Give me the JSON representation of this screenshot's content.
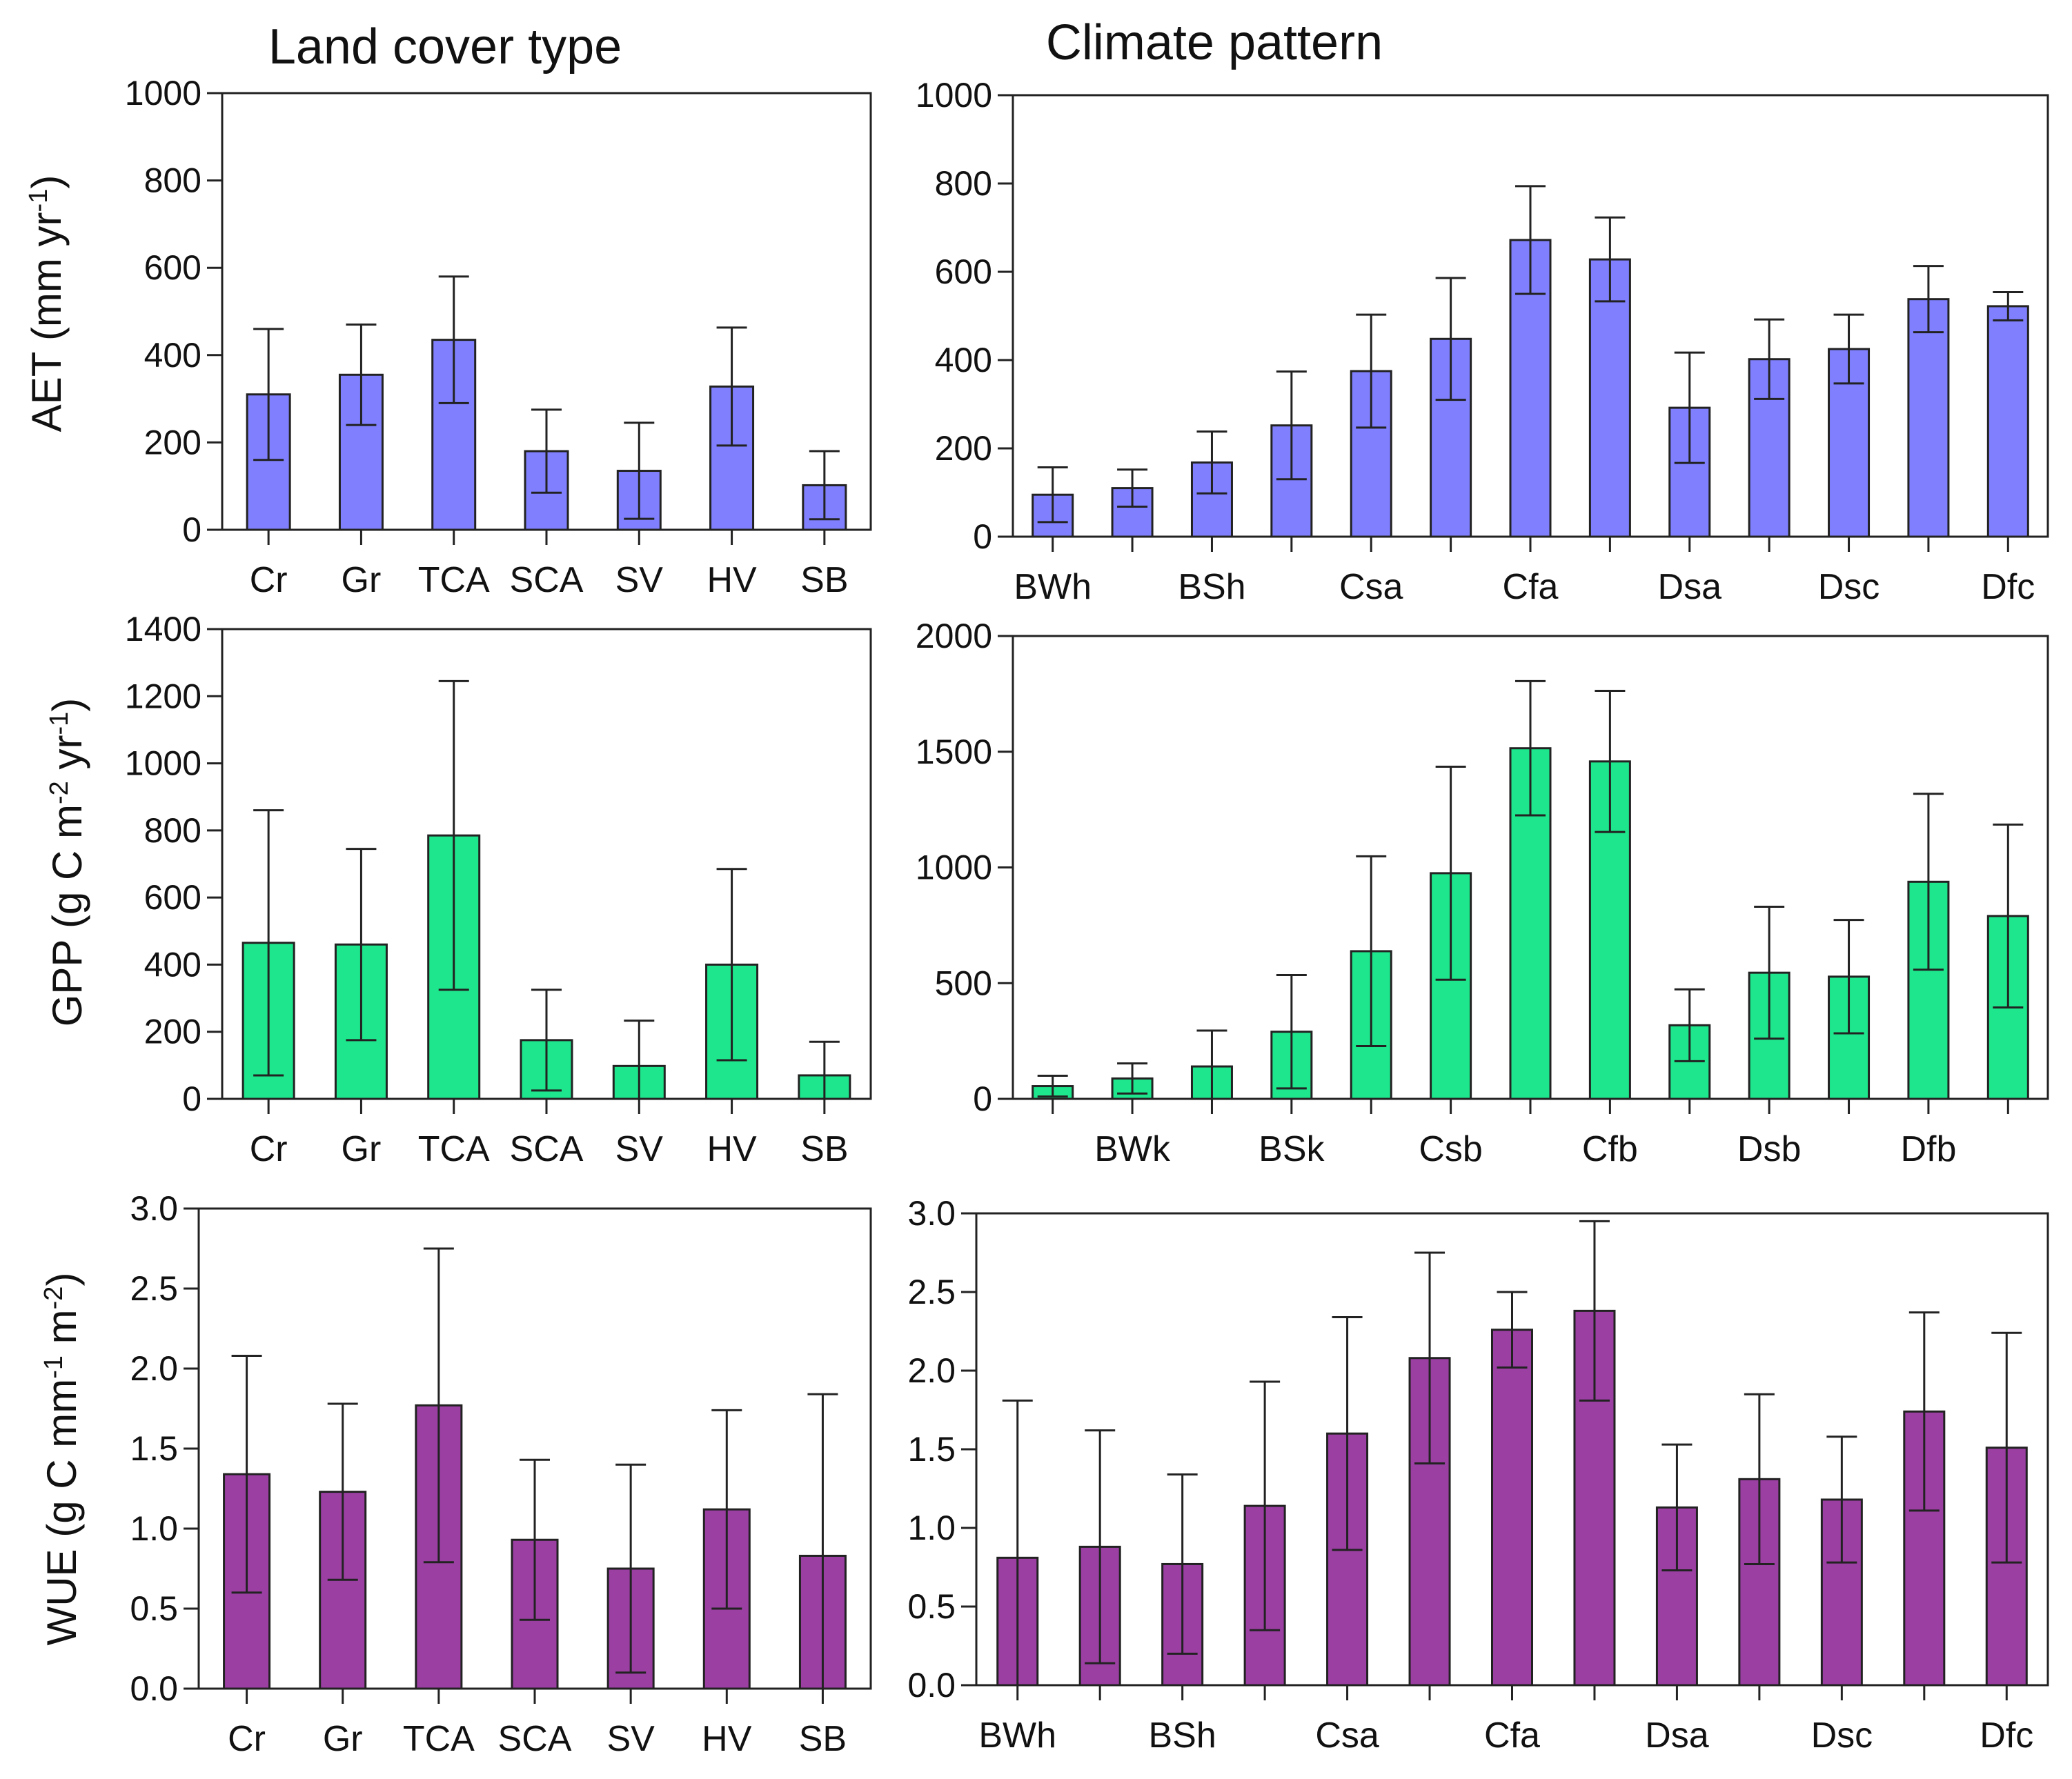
{
  "headers": {
    "left": "Land cover type",
    "right": "Climate pattern"
  },
  "colors": {
    "aet": "#8080ff",
    "gpp": "#1ee68c",
    "wue": "#9b3fa3",
    "axis": "#222222"
  },
  "ylabels": {
    "aet": {
      "main": "AET (mm yr",
      "sup": "-1",
      "tail": ")"
    },
    "gpp": {
      "main": "GPP (g C m",
      "sup1": "-2",
      "mid": " yr",
      "sup2": "-1",
      "tail": ")"
    },
    "wue": {
      "main": "WUE (g C mm",
      "sup1": "-1",
      "mid": " m",
      "sup2": "-2",
      "tail": ")"
    }
  },
  "chart_data": [
    {
      "id": "aet-land",
      "type": "bar",
      "variable": "AET",
      "group": "Land cover type",
      "categories": [
        "Cr",
        "Gr",
        "TCA",
        "SCA",
        "SV",
        "HV",
        "SB"
      ],
      "values": [
        310,
        355,
        435,
        180,
        135,
        328,
        102
      ],
      "errors": [
        150,
        115,
        145,
        95,
        110,
        135,
        78
      ],
      "ylim": [
        0,
        1000
      ],
      "yticks": [
        0,
        200,
        400,
        600,
        800,
        1000
      ],
      "decimals": 0,
      "tick_labels": [
        "Cr",
        "Gr",
        "TCA",
        "SCA",
        "SV",
        "HV",
        "SB"
      ]
    },
    {
      "id": "aet-climate",
      "type": "bar",
      "variable": "AET",
      "group": "Climate pattern",
      "categories": [
        "BWh",
        "BWk",
        "BSh",
        "BSk",
        "Csa",
        "Csb",
        "Cfa",
        "Cfb",
        "Dsa",
        "Dsb",
        "Dsc",
        "Dfb",
        "Dfc"
      ],
      "values": [
        95,
        110,
        168,
        252,
        375,
        448,
        672,
        628,
        292,
        402,
        425,
        538,
        522
      ],
      "errors": [
        62,
        42,
        70,
        122,
        128,
        138,
        122,
        95,
        125,
        90,
        78,
        75,
        32
      ],
      "ylim": [
        0,
        1000
      ],
      "yticks": [
        0,
        200,
        400,
        600,
        800,
        1000
      ],
      "decimals": 0,
      "tick_labels": [
        "BWh",
        "",
        "BSh",
        "",
        "Csa",
        "",
        "Cfa",
        "",
        "Dsa",
        "",
        "Dsc",
        "",
        "Dfc"
      ]
    },
    {
      "id": "gpp-land",
      "type": "bar",
      "variable": "GPP",
      "group": "Land cover type",
      "categories": [
        "Cr",
        "Gr",
        "TCA",
        "SCA",
        "SV",
        "HV",
        "SB"
      ],
      "values": [
        465,
        460,
        785,
        175,
        98,
        400,
        70
      ],
      "errors": [
        395,
        285,
        460,
        150,
        135,
        285,
        100
      ],
      "ylim": [
        0,
        1400
      ],
      "yticks": [
        0,
        200,
        400,
        600,
        800,
        1000,
        1200,
        1400
      ],
      "decimals": 0,
      "tick_labels": [
        "Cr",
        "Gr",
        "TCA",
        "SCA",
        "SV",
        "HV",
        "SB"
      ]
    },
    {
      "id": "gpp-climate",
      "type": "bar",
      "variable": "GPP",
      "group": "Climate pattern",
      "categories": [
        "BWh",
        "BWk",
        "BSh",
        "BSk",
        "Csa",
        "Csb",
        "Cfa",
        "Cfb",
        "Dsa",
        "Dsb",
        "Dsc",
        "Dfb",
        "Dfc"
      ],
      "values": [
        55,
        88,
        140,
        290,
        638,
        975,
        1515,
        1458,
        318,
        545,
        528,
        938,
        790
      ],
      "errors": [
        45,
        65,
        155,
        245,
        410,
        460,
        290,
        305,
        155,
        285,
        245,
        380,
        395
      ],
      "ylim": [
        0,
        2000
      ],
      "yticks": [
        0,
        500,
        1000,
        1500,
        2000
      ],
      "decimals": 0,
      "tick_labels": [
        "",
        "BWk",
        "",
        "BSk",
        "",
        "Csb",
        "",
        "Cfb",
        "",
        "Dsb",
        "",
        "Dfb",
        ""
      ]
    },
    {
      "id": "wue-land",
      "type": "bar",
      "variable": "WUE",
      "group": "Land cover type",
      "categories": [
        "Cr",
        "Gr",
        "TCA",
        "SCA",
        "SV",
        "HV",
        "SB"
      ],
      "values": [
        1.34,
        1.23,
        1.77,
        0.93,
        0.75,
        1.12,
        0.83
      ],
      "errors": [
        0.74,
        0.55,
        0.98,
        0.5,
        0.65,
        0.62,
        1.01
      ],
      "ylim": [
        0,
        3.0
      ],
      "yticks": [
        0,
        0.5,
        1.0,
        1.5,
        2.0,
        2.5,
        3.0
      ],
      "decimals": 1,
      "tick_labels": [
        "Cr",
        "Gr",
        "TCA",
        "SCA",
        "SV",
        "HV",
        "SB"
      ]
    },
    {
      "id": "wue-climate",
      "type": "bar",
      "variable": "WUE",
      "group": "Climate pattern",
      "categories": [
        "BWh",
        "BWk",
        "BSh",
        "BSk",
        "Csa",
        "Csb",
        "Cfa",
        "Cfb",
        "Dsa",
        "Dsb",
        "Dsc",
        "Dfb",
        "Dfc"
      ],
      "values": [
        0.81,
        0.88,
        0.77,
        1.14,
        1.6,
        2.08,
        2.26,
        2.38,
        1.13,
        1.31,
        1.18,
        1.74,
        1.51
      ],
      "errors": [
        1.0,
        0.74,
        0.57,
        0.79,
        0.74,
        0.67,
        0.24,
        0.57,
        0.4,
        0.54,
        0.4,
        0.63,
        0.73
      ],
      "ylim": [
        0,
        3.0
      ],
      "yticks": [
        0,
        0.5,
        1.0,
        1.5,
        2.0,
        2.5,
        3.0
      ],
      "decimals": 1,
      "tick_labels": [
        "BWh",
        "",
        "BSh",
        "",
        "Csa",
        "",
        "Cfa",
        "",
        "Dsa",
        "",
        "Dsc",
        "",
        "Dfc"
      ]
    }
  ]
}
